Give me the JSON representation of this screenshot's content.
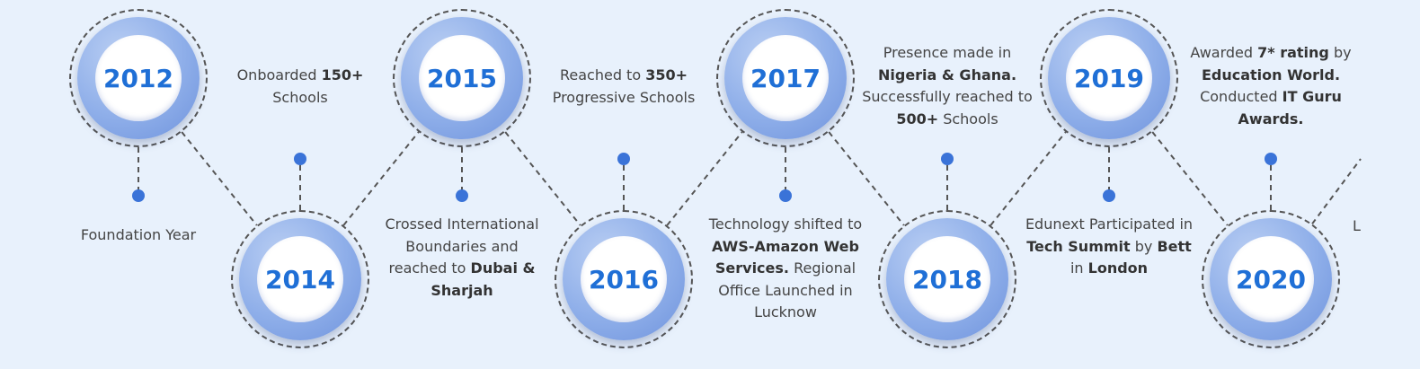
{
  "milestones": [
    {
      "year": "2012",
      "segments": [
        {
          "t": "Foundation Year"
        }
      ]
    },
    {
      "year": "2014",
      "segments": [
        {
          "t": "Onboarded "
        },
        {
          "t": "150+",
          "b": true
        },
        {
          "t": " Schools"
        }
      ]
    },
    {
      "year": "2015",
      "segments": [
        {
          "t": "Crossed International Boundaries and reached to "
        },
        {
          "t": "Dubai & Sharjah",
          "b": true
        }
      ]
    },
    {
      "year": "2016",
      "segments": [
        {
          "t": "Reached to "
        },
        {
          "t": "350+",
          "b": true
        },
        {
          "t": " Progressive Schools"
        }
      ]
    },
    {
      "year": "2017",
      "segments": [
        {
          "t": "Technology shifted to "
        },
        {
          "t": "AWS-Amazon Web Services.",
          "b": true
        },
        {
          "t": " Regional Office Launched in Lucknow"
        }
      ]
    },
    {
      "year": "2018",
      "segments": [
        {
          "t": "Presence made in "
        },
        {
          "t": "Nigeria & Ghana.",
          "b": true
        },
        {
          "t": " Successfully reached to "
        },
        {
          "t": "500+",
          "b": true
        },
        {
          "t": " Schools"
        }
      ]
    },
    {
      "year": "2019",
      "segments": [
        {
          "t": "Edunext Participated in "
        },
        {
          "t": "Tech Summit",
          "b": true
        },
        {
          "t": " by "
        },
        {
          "t": "Bett",
          "b": true
        },
        {
          "t": " in "
        },
        {
          "t": "London",
          "b": true
        }
      ]
    },
    {
      "year": "2020",
      "segments": [
        {
          "t": "Awarded "
        },
        {
          "t": "7* rating",
          "b": true
        },
        {
          "t": " by "
        },
        {
          "t": "Education World.",
          "b": true
        },
        {
          "t": " Conducted "
        },
        {
          "t": "IT Guru Awards.",
          "b": true
        }
      ]
    }
  ],
  "overflow_caption": "L"
}
